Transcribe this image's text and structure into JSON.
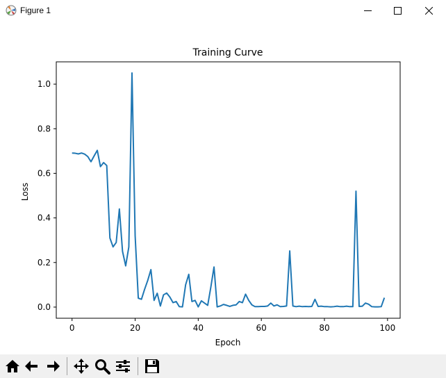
{
  "window": {
    "title": "Figure 1"
  },
  "toolbar": {
    "buttons": [
      {
        "name": "home-button",
        "icon": "home-icon"
      },
      {
        "name": "back-button",
        "icon": "arrow-left-icon"
      },
      {
        "name": "forward-button",
        "icon": "arrow-right-icon"
      },
      {
        "name": "pan-button",
        "icon": "move-icon"
      },
      {
        "name": "zoom-button",
        "icon": "magnifier-icon"
      },
      {
        "name": "configure-subplots-button",
        "icon": "sliders-icon"
      },
      {
        "name": "save-button",
        "icon": "floppy-disk-icon"
      }
    ]
  },
  "chart_data": {
    "type": "line",
    "title": "Training Curve",
    "xlabel": "Epoch",
    "ylabel": "Loss",
    "xlim": [
      -5,
      104
    ],
    "ylim": [
      -0.05,
      1.1
    ],
    "xticks": [
      0,
      20,
      40,
      60,
      80,
      100
    ],
    "yticks": [
      0.0,
      0.2,
      0.4,
      0.6,
      0.8,
      1.0
    ],
    "grid": false,
    "line_color": "#1f77b4",
    "series": [
      {
        "x": [
          0,
          1,
          2,
          3,
          4,
          5,
          6,
          7,
          8,
          9,
          10,
          11,
          12,
          13,
          14,
          15,
          16,
          17,
          18,
          19,
          20,
          21,
          22,
          23,
          24,
          25,
          26,
          27,
          28,
          29,
          30,
          31,
          32,
          33,
          34,
          35,
          36,
          37,
          38,
          39,
          40,
          41,
          42,
          43,
          44,
          45,
          46,
          47,
          48,
          49,
          50,
          51,
          52,
          53,
          54,
          55,
          56,
          57,
          58,
          59,
          60,
          61,
          62,
          63,
          64,
          65,
          66,
          67,
          68,
          69,
          70,
          71,
          72,
          73,
          74,
          75,
          76,
          77,
          78,
          79,
          80,
          81,
          82,
          83,
          84,
          85,
          86,
          87,
          88,
          89,
          90,
          91,
          92,
          93,
          94,
          95,
          96,
          97,
          98,
          99
        ],
        "values": [
          0.691,
          0.69,
          0.687,
          0.691,
          0.686,
          0.675,
          0.652,
          0.678,
          0.703,
          0.63,
          0.648,
          0.635,
          0.31,
          0.27,
          0.29,
          0.44,
          0.25,
          0.185,
          0.27,
          1.05,
          0.32,
          0.04,
          0.035,
          0.08,
          0.12,
          0.168,
          0.03,
          0.062,
          0.005,
          0.055,
          0.063,
          0.045,
          0.02,
          0.025,
          0.002,
          0.001,
          0.1,
          0.147,
          0.025,
          0.03,
          0.001,
          0.028,
          0.018,
          0.008,
          0.09,
          0.18,
          0.001,
          0.005,
          0.012,
          0.008,
          0.003,
          0.008,
          0.01,
          0.025,
          0.02,
          0.058,
          0.03,
          0.01,
          0.002,
          0.002,
          0.003,
          0.003,
          0.005,
          0.018,
          0.005,
          0.01,
          0.002,
          0.003,
          0.005,
          0.252,
          0.005,
          0.002,
          0.004,
          0.002,
          0.003,
          0.002,
          0.003,
          0.035,
          0.003,
          0.004,
          0.002,
          0.002,
          0.001,
          0.002,
          0.004,
          0.002,
          0.002,
          0.004,
          0.002,
          0.002,
          0.52,
          0.003,
          0.004,
          0.018,
          0.013,
          0.002,
          0.001,
          0.001,
          0.002,
          0.042
        ]
      }
    ]
  }
}
